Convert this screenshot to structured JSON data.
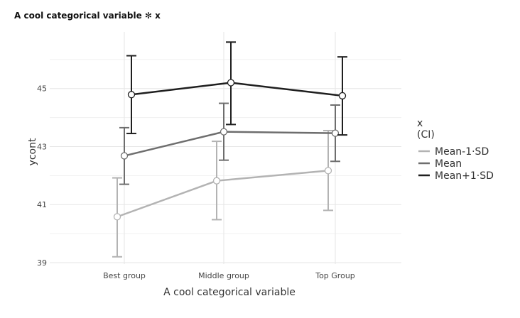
{
  "chart_data": {
    "type": "line",
    "title": "A cool categorical variable ✻ x",
    "xlabel": "A cool categorical variable",
    "ylabel": "ycont",
    "categories": [
      "Best group",
      "Middle group",
      "Top Group"
    ],
    "ylim": [
      38.95,
      46.95
    ],
    "yticks": [
      39,
      41,
      43,
      45
    ],
    "grid": true,
    "legend": {
      "title_line1": "x",
      "title_line2": "(CI)",
      "position": "right"
    },
    "series": [
      {
        "name": "Mean-1·SD",
        "color": "#b3b3b3",
        "values": [
          40.58,
          41.82,
          42.17
        ],
        "ci_low": [
          39.2,
          40.48,
          40.8
        ],
        "ci_high": [
          41.92,
          43.18,
          43.55
        ]
      },
      {
        "name": "Mean",
        "color": "#6e6e6e",
        "values": [
          42.68,
          43.51,
          43.46
        ],
        "ci_low": [
          41.7,
          42.53,
          42.49
        ],
        "ci_high": [
          43.65,
          44.49,
          44.43
        ]
      },
      {
        "name": "Mean+1·SD",
        "color": "#1f1f1f",
        "values": [
          44.79,
          45.2,
          44.75
        ],
        "ci_low": [
          43.45,
          43.76,
          43.4
        ],
        "ci_high": [
          46.13,
          46.6,
          46.09
        ]
      }
    ]
  }
}
